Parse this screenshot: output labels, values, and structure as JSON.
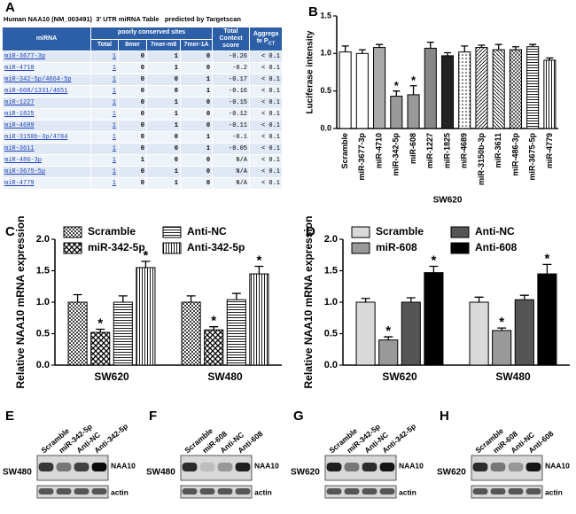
{
  "table_panel": {
    "letter": "A",
    "title": "Human NAA10 (NM_003491)  3' UTR miRNA Table   predicted by Targetscan",
    "header": {
      "mirna": "miRNA",
      "sites": "poorly conserved sites",
      "total": "Total",
      "mer8": "8mer",
      "m8": "7mer-m8",
      "a1": "7mer-1A",
      "context": "Total Context score",
      "aggregate": "Aggrega te P",
      "aggregate_sub": "CT"
    },
    "rows": [
      [
        "miR-3677-3p",
        "1",
        "0",
        "1",
        "0",
        "-0.26",
        "< 0.1"
      ],
      [
        "miR-4710",
        "1",
        "0",
        "1",
        "0",
        "-0.2",
        "< 0.1"
      ],
      [
        "miR-342-5p/4664-5p",
        "1",
        "0",
        "0",
        "1",
        "-0.17",
        "< 0.1"
      ],
      [
        "miR-608/1331/4651",
        "1",
        "0",
        "0",
        "1",
        "-0.16",
        "< 0.1"
      ],
      [
        "miR-1227",
        "1",
        "0",
        "1",
        "0",
        "-0.15",
        "< 0.1"
      ],
      [
        "miR-1825",
        "1",
        "0",
        "1",
        "0",
        "-0.12",
        "< 0.1"
      ],
      [
        "miR-4689",
        "1",
        "0",
        "1",
        "0",
        "-0.11",
        "< 0.1"
      ],
      [
        "miR-3150b-3p/4784",
        "1",
        "0",
        "0",
        "1",
        "-0.1",
        "< 0.1"
      ],
      [
        "miR-3611",
        "1",
        "0",
        "0",
        "1",
        "-0.05",
        "< 0.1"
      ],
      [
        "miR-486-3p",
        "1",
        "1",
        "0",
        "0",
        "N/A",
        "< 0.1"
      ],
      [
        "miR-3675-5p",
        "1",
        "0",
        "1",
        "0",
        "N/A",
        "< 0.1"
      ],
      [
        "miR-4779",
        "1",
        "0",
        "1",
        "0",
        "N/A",
        "< 0.1"
      ]
    ]
  },
  "chart_data": [
    {
      "type": "bar",
      "letter": "B",
      "xlabel": "SW620",
      "ylabel": "Luciferase intensity",
      "categories": [
        "Scramble",
        "miR-3677-3p",
        "miR-4710",
        "miR-342-5p",
        "miR-608",
        "miR-1227",
        "miR-1825",
        "miR-4689",
        "miR-3150b-3p",
        "miR-3611",
        "miR-486-3p",
        "miR-3675-5p",
        "miR-4779"
      ],
      "values": [
        1.02,
        1.0,
        1.08,
        0.43,
        0.45,
        1.07,
        0.97,
        1.02,
        1.08,
        1.05,
        1.05,
        1.09,
        0.91
      ],
      "errors": [
        0.08,
        0.05,
        0.04,
        0.07,
        0.12,
        0.08,
        0.04,
        0.08,
        0.03,
        0.07,
        0.04,
        0.03,
        0.03
      ],
      "stars": [
        null,
        null,
        null,
        "*",
        "*",
        null,
        null,
        null,
        null,
        null,
        null,
        null,
        null
      ],
      "colors": [
        "#ffffff",
        "#ffffff",
        "#aaaaaa",
        "#999999",
        "#999999",
        "#888888",
        "#222222",
        "#ffffff",
        "#ffffff",
        "#ffffff",
        "#ffffff",
        "#ffffff",
        "#bbbbbb"
      ],
      "patterns": [
        null,
        null,
        null,
        null,
        null,
        null,
        null,
        "dots",
        "hatch",
        "hatchback",
        "grid",
        "hlines",
        "vlines"
      ],
      "ylim": [
        0,
        1.5
      ],
      "yticks": [
        {
          "value": 0,
          "label": "0.0"
        },
        0.5,
        {
          "value": 1,
          "label": "1.0"
        },
        1.5
      ]
    },
    {
      "type": "grouped-bar",
      "letter": "C",
      "ylabel": "Relative NAA10 mRNA expression",
      "categories": [
        "SW620",
        "SW480"
      ],
      "series": [
        {
          "name": "Scramble",
          "color": "#ffffff",
          "pattern": "checker",
          "values": [
            1.0,
            1.0
          ],
          "errors": [
            0.12,
            0.1
          ]
        },
        {
          "name": "miR-342-5p",
          "color": "#ffffff",
          "pattern": "cross",
          "values": [
            0.52,
            0.56
          ],
          "errors": [
            0.05,
            0.05
          ],
          "stars": [
            "*",
            "*"
          ]
        },
        {
          "name": "Anti-NC",
          "color": "#ffffff",
          "pattern": "hlines",
          "values": [
            1.0,
            1.04
          ],
          "errors": [
            0.1,
            0.1
          ]
        },
        {
          "name": "Anti-342-5p",
          "color": "#ffffff",
          "pattern": "vlines",
          "values": [
            1.55,
            1.45
          ],
          "errors": [
            0.1,
            0.12
          ],
          "stars": [
            "*",
            "*"
          ]
        }
      ],
      "ylim": [
        0,
        2
      ],
      "yticks": [
        {
          "value": 0,
          "label": "0.0"
        },
        0.5,
        {
          "value": 1,
          "label": "1.0"
        },
        1.5,
        {
          "value": 2,
          "label": "2.0"
        }
      ]
    },
    {
      "type": "grouped-bar",
      "letter": "D",
      "ylabel": "Relative NAA10 mRNA expression",
      "categories": [
        "SW620",
        "SW480"
      ],
      "series": [
        {
          "name": "Scramble",
          "color": "#d9d9d9",
          "values": [
            1.0,
            1.0
          ],
          "errors": [
            0.06,
            0.08
          ]
        },
        {
          "name": "miR-608",
          "color": "#999999",
          "values": [
            0.4,
            0.55
          ],
          "errors": [
            0.05,
            0.04
          ],
          "stars": [
            "*",
            "*"
          ]
        },
        {
          "name": "Anti-NC",
          "color": "#555555",
          "values": [
            1.0,
            1.04
          ],
          "errors": [
            0.07,
            0.07
          ]
        },
        {
          "name": "Anti-608",
          "color": "#000000",
          "values": [
            1.47,
            1.45
          ],
          "errors": [
            0.1,
            0.15
          ],
          "stars": [
            "*",
            "*"
          ]
        }
      ],
      "ylim": [
        0,
        2
      ],
      "yticks": [
        {
          "value": 0,
          "label": "0.0"
        },
        0.5,
        {
          "value": 1,
          "label": "1.0"
        },
        1.5,
        {
          "value": 2,
          "label": "2.0"
        }
      ]
    }
  ],
  "blots": [
    {
      "letter": "E",
      "cell_line": "SW480",
      "lanes": [
        "Scramble",
        "miR-342-5p",
        "Anti-NC",
        "Anti-342-5p"
      ],
      "bands": [
        "NAA10",
        "actin"
      ]
    },
    {
      "letter": "F",
      "cell_line": "SW480",
      "lanes": [
        "Scramble",
        "miR-608",
        "Anti-NC",
        "Anti-608"
      ],
      "bands": [
        "NAA10",
        "actin"
      ]
    },
    {
      "letter": "G",
      "cell_line": "SW620",
      "lanes": [
        "Scramble",
        "miR-342-5p",
        "Anti-NC",
        "Anti-342-5p"
      ],
      "bands": [
        "NAA10",
        "actin"
      ]
    },
    {
      "letter": "H",
      "cell_line": "SW620",
      "lanes": [
        "Scramble",
        "miR-608",
        "Anti-NC",
        "Anti-608"
      ],
      "bands": [
        "NAA10",
        "actin"
      ]
    }
  ]
}
